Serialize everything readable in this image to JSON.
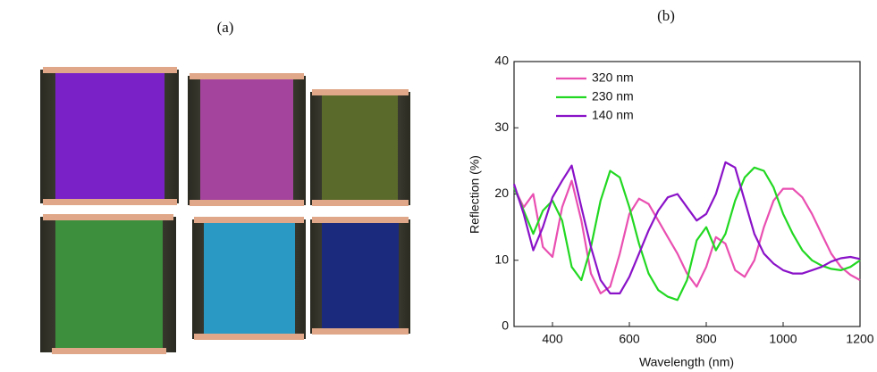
{
  "panel_labels": [
    "(a)",
    "(b)"
  ],
  "chart_data": {
    "type": "line",
    "xlabel": "Wavelength (nm)",
    "ylabel": "Reflection (%)",
    "xlim": [
      300,
      1200
    ],
    "ylim": [
      0,
      40
    ],
    "xticks": [
      400,
      600,
      800,
      1000,
      1200
    ],
    "yticks": [
      0,
      10,
      20,
      30,
      40
    ],
    "legend": "upper left",
    "x": [
      300,
      325,
      350,
      375,
      400,
      425,
      450,
      475,
      500,
      525,
      550,
      575,
      600,
      625,
      650,
      675,
      700,
      725,
      750,
      775,
      800,
      825,
      850,
      875,
      900,
      925,
      950,
      975,
      1000,
      1025,
      1050,
      1075,
      1100,
      1125,
      1150,
      1175,
      1200
    ],
    "series": [
      {
        "name": "320 nm",
        "color": "#e94fb1",
        "values": [
          21,
          18,
          20,
          12,
          10.5,
          18,
          22,
          16,
          8,
          5,
          6,
          11,
          17,
          19.3,
          18.5,
          16,
          13.5,
          11,
          8,
          6,
          9,
          13.5,
          12.5,
          8.5,
          7.5,
          10,
          15,
          19,
          20.8,
          20.8,
          19.5,
          17,
          14,
          11,
          9,
          7.8,
          7
        ]
      },
      {
        "name": "230 nm",
        "color": "#22d822",
        "values": [
          21,
          17.5,
          14,
          17.5,
          19,
          16,
          9,
          7,
          12,
          19,
          23.5,
          22.5,
          18,
          12.5,
          8,
          5.5,
          4.5,
          4,
          7,
          13,
          15,
          11.5,
          14,
          19,
          22.5,
          24,
          23.5,
          21,
          17,
          14,
          11.5,
          10,
          9.2,
          8.7,
          8.5,
          9,
          10
        ]
      },
      {
        "name": "140 nm",
        "color": "#8a12c8",
        "values": [
          21.5,
          17,
          11.5,
          15,
          19.5,
          22,
          24.3,
          18,
          12,
          7,
          5,
          5,
          7.5,
          11,
          14.5,
          17.5,
          19.5,
          20,
          18,
          16,
          17,
          20,
          24.8,
          24,
          19,
          14,
          11,
          9.5,
          8.5,
          8,
          8,
          8.5,
          9,
          9.8,
          10.3,
          10.5,
          10.2
        ]
      }
    ]
  }
}
